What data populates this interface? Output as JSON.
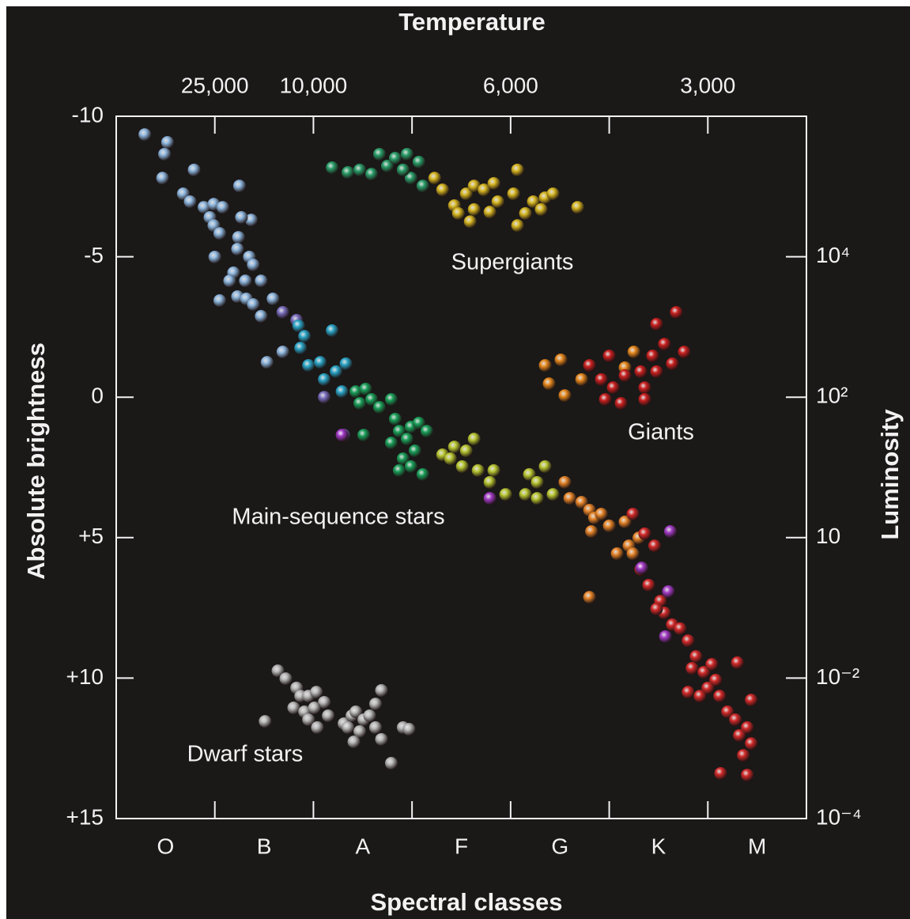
{
  "chart_data": {
    "type": "scatter",
    "x2_label": "Temperature",
    "x_label": "Spectral classes",
    "y_label": "Absolute brightness",
    "y2_label": "Luminosity",
    "categories": [
      "O",
      "B",
      "A",
      "F",
      "G",
      "K",
      "M"
    ],
    "xlim": [
      0,
      7
    ],
    "x2ticks": [
      {
        "value": 25000,
        "label": "25,000"
      },
      {
        "value": 10000,
        "label": "10,000"
      },
      null,
      {
        "value": 6000,
        "label": "6,000"
      },
      null,
      {
        "value": 3000,
        "label": "3,000"
      }
    ],
    "ylim": [
      -10,
      15
    ],
    "y_inverted": true,
    "yticks": [
      -10,
      -5,
      0,
      {
        "value": 5,
        "label": "+5"
      },
      {
        "value": 10,
        "label": "+10"
      },
      {
        "value": 15,
        "label": "+15"
      }
    ],
    "y2ticks": [
      {
        "value": 10000,
        "label": "10⁴"
      },
      {
        "value": 100,
        "label": "10²"
      },
      10,
      {
        "value": 0.01,
        "label": "10⁻²"
      },
      {
        "value": 0.0001,
        "label": "10⁻⁴"
      }
    ],
    "annotations": [
      "Supergiants",
      "Giants",
      "Main-sequence stars",
      "Dwarf stars"
    ],
    "series": [
      {
        "color": "#8fb8e0",
        "x": [
          0.29,
          0.52,
          0.49,
          0.47,
          0.79,
          0.68,
          0.75,
          0.89,
          0.99,
          1.08,
          0.95,
          0.99,
          1.05,
          1.25,
          1.37,
          1.27,
          1.24,
          1.0,
          1.23,
          1.35,
          1.19,
          1.39,
          1.31,
          1.15,
          1.47,
          1.05,
          1.23,
          1.32,
          1.39,
          1.47,
          1.59,
          1.53,
          1.69
        ],
        "values": [
          -9.35,
          -9.07,
          -8.65,
          -7.8,
          -8.09,
          -7.24,
          -6.96,
          -6.76,
          -6.87,
          -6.76,
          -6.4,
          -6.11,
          -5.83,
          -7.52,
          -6.31,
          -6.4,
          -5.69,
          -4.99,
          -5.27,
          -4.99,
          -4.43,
          -4.71,
          -4.14,
          -4.14,
          -4.14,
          -3.44,
          -3.58,
          -3.5,
          -3.3,
          -2.88,
          -3.5,
          -1.24,
          -1.61
        ]
      },
      {
        "color": "#7a6fc0",
        "x": [
          1.69,
          1.83,
          2.11,
          2.31
        ],
        "values": [
          -3.02,
          -2.74,
          0.0,
          1.35
        ]
      },
      {
        "color": "#2aa6c8",
        "x": [
          1.85,
          1.91,
          2.19,
          1.87,
          1.95,
          2.07,
          2.11,
          2.23,
          2.33,
          2.29
        ],
        "values": [
          -2.54,
          -2.17,
          -2.37,
          -1.75,
          -1.13,
          -1.24,
          -0.63,
          -0.91,
          -1.19,
          -0.2
        ]
      },
      {
        "color": "#1aa05a",
        "x": [
          2.43,
          2.53,
          2.59,
          2.67,
          2.79,
          2.47,
          2.51,
          2.83,
          2.87,
          2.99,
          3.07,
          3.15,
          2.95,
          3.03,
          2.91,
          2.99,
          3.11,
          2.87,
          2.79
        ],
        "values": [
          -0.2,
          -0.29,
          0.08,
          0.36,
          0.08,
          0.22,
          1.35,
          0.78,
          1.21,
          1.06,
          0.92,
          1.21,
          1.49,
          1.91,
          2.19,
          2.47,
          2.75,
          2.61,
          1.63
        ]
      },
      {
        "color": "#b9c832",
        "x": [
          3.31,
          3.43,
          3.55,
          3.63,
          3.51,
          3.67,
          3.83,
          3.39,
          3.79,
          3.95,
          4.19,
          4.27,
          4.35,
          4.15,
          4.27,
          4.43
        ],
        "values": [
          2.05,
          1.77,
          1.91,
          1.49,
          2.47,
          2.61,
          2.61,
          2.19,
          3.03,
          3.46,
          2.75,
          3.03,
          2.47,
          3.46,
          3.6,
          3.46
        ]
      },
      {
        "color": "#e8862a",
        "x": [
          4.55,
          4.6,
          4.72,
          4.8,
          4.85,
          4.92,
          5.0,
          4.82,
          5.16,
          5.2,
          5.24,
          5.3,
          5.08,
          4.8
        ],
        "values": [
          3.03,
          3.6,
          3.74,
          4.02,
          4.3,
          4.16,
          4.58,
          4.78,
          4.44,
          5.29,
          5.57,
          5.01,
          5.57,
          7.12
        ]
      },
      {
        "color": "#d42a2a",
        "x": [
          5.24,
          5.36,
          5.46,
          5.32,
          5.4,
          5.52,
          5.56,
          5.64,
          5.48,
          5.72,
          5.8,
          5.88,
          5.84,
          5.96,
          6.04,
          6.08,
          6.0,
          6.12,
          5.92,
          5.8,
          6.2,
          6.28,
          6.4,
          6.32,
          6.44,
          6.36,
          6.4,
          6.13,
          6.44,
          6.3
        ],
        "values": [
          4.16,
          4.86,
          5.29,
          6.13,
          6.69,
          7.26,
          7.68,
          8.1,
          7.54,
          8.24,
          8.67,
          9.23,
          9.65,
          9.79,
          9.51,
          10.07,
          10.35,
          10.64,
          10.64,
          10.5,
          11.2,
          11.48,
          11.76,
          12.04,
          12.33,
          12.75,
          13.45,
          13.39,
          10.78,
          9.45
        ]
      },
      {
        "color": "#a43cc8",
        "x": [
          5.62,
          5.33,
          5.6,
          5.57,
          3.79,
          2.29
        ],
        "values": [
          4.78,
          6.08,
          6.92,
          8.52,
          3.6,
          1.35
        ]
      },
      {
        "color": "#2a9f6a",
        "x": [
          2.19,
          2.35,
          2.59,
          2.75,
          2.83,
          2.95,
          2.99,
          2.67,
          2.91,
          3.07,
          3.11,
          2.47
        ],
        "values": [
          -8.17,
          -8.0,
          -7.94,
          -8.23,
          -8.51,
          -8.65,
          -7.8,
          -8.65,
          -8.09,
          -8.37,
          -7.52,
          -8.09
        ]
      },
      {
        "color": "#d8b822",
        "x": [
          3.23,
          3.31,
          3.43,
          3.55,
          3.63,
          3.73,
          3.83,
          3.87,
          4.03,
          3.47,
          3.63,
          3.79,
          4.07,
          4.15,
          4.23,
          4.35,
          4.43,
          4.31,
          4.07,
          4.68,
          3.59
        ],
        "values": [
          -7.8,
          -7.38,
          -6.82,
          -7.24,
          -7.52,
          -7.38,
          -7.61,
          -6.96,
          -7.24,
          -6.54,
          -6.68,
          -6.59,
          -8.09,
          -6.54,
          -6.96,
          -7.1,
          -7.24,
          -6.68,
          -6.11,
          -6.76,
          -6.25
        ]
      },
      {
        "color": "#e88a1e",
        "x": [
          4.35,
          4.51,
          4.39,
          4.72,
          4.55,
          5.25,
          5.16
        ],
        "values": [
          -1.13,
          -1.33,
          -0.48,
          -0.63,
          -0.06,
          -1.61,
          -1.05
        ]
      },
      {
        "color": "#cc2020",
        "x": [
          4.8,
          5.0,
          4.92,
          5.04,
          5.16,
          5.32,
          5.48,
          5.48,
          5.68,
          5.56,
          5.44,
          5.64,
          5.76,
          5.36,
          4.96,
          5.12,
          5.36
        ],
        "values": [
          -1.13,
          -1.47,
          -0.63,
          -0.34,
          -0.77,
          -0.91,
          -0.91,
          -2.6,
          -3.02,
          -1.89,
          -1.47,
          -1.19,
          -1.61,
          -0.34,
          0.08,
          0.22,
          0.08
        ]
      },
      {
        "color": "#b8b8b8",
        "x": [
          1.64,
          1.72,
          1.83,
          1.87,
          1.95,
          2.03,
          2.11,
          1.8,
          1.91,
          2.01,
          1.51,
          1.95,
          2.04,
          2.15,
          2.31,
          2.39,
          2.35,
          2.43,
          2.51,
          2.57,
          2.63,
          2.47,
          2.69,
          2.69,
          2.79,
          2.91,
          2.97,
          2.63,
          2.41
        ],
        "values": [
          9.74,
          10.02,
          10.35,
          10.64,
          10.64,
          10.5,
          10.86,
          11.06,
          11.2,
          11.06,
          11.54,
          11.48,
          11.76,
          11.34,
          11.62,
          11.34,
          11.76,
          11.2,
          11.48,
          11.34,
          11.76,
          11.9,
          10.44,
          12.18,
          13.03,
          11.76,
          11.82,
          10.92,
          12.27
        ]
      }
    ]
  }
}
